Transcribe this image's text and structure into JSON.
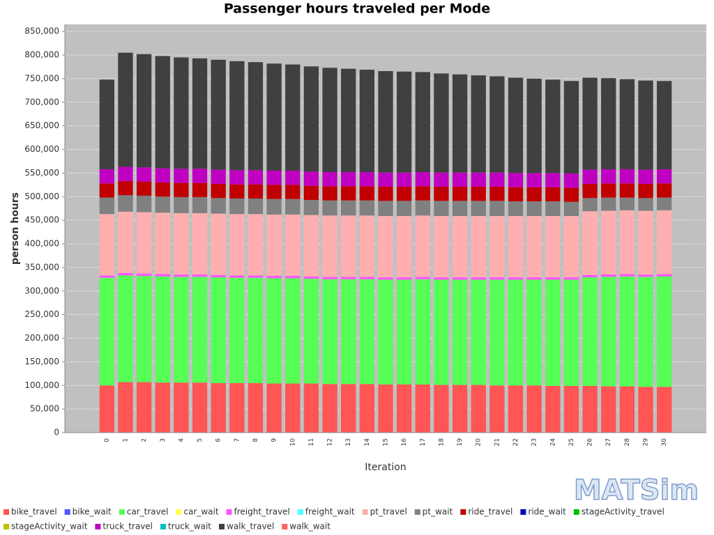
{
  "chart_data": {
    "type": "stacked-bar",
    "title": "Passenger hours traveled per Mode",
    "x_label": "Iteration",
    "y_label": "person hours",
    "logo": "MATSim",
    "categories": [
      0,
      1,
      2,
      3,
      4,
      5,
      6,
      7,
      8,
      9,
      10,
      11,
      12,
      13,
      14,
      15,
      16,
      17,
      18,
      19,
      20,
      21,
      22,
      23,
      24,
      25,
      26,
      27,
      28,
      29,
      30
    ],
    "ylim": [
      0,
      865000
    ],
    "yticks": [
      0,
      {
        "value": 50000,
        "label": "50,000"
      },
      {
        "value": 100000,
        "label": "100,000"
      },
      {
        "value": 150000,
        "label": "150,000"
      },
      {
        "value": 200000,
        "label": "200,000"
      },
      {
        "value": 250000,
        "label": "250,000"
      },
      {
        "value": 300000,
        "label": "300,000"
      },
      {
        "value": 350000,
        "label": "350,000"
      },
      {
        "value": 400000,
        "label": "400,000"
      },
      {
        "value": 450000,
        "label": "450,000"
      },
      {
        "value": 500000,
        "label": "500,000"
      },
      {
        "value": 550000,
        "label": "550,000"
      },
      {
        "value": 600000,
        "label": "600,000"
      },
      {
        "value": 650000,
        "label": "650,000"
      },
      {
        "value": 700000,
        "label": "700,000"
      },
      {
        "value": 750000,
        "label": "750,000"
      },
      {
        "value": 800000,
        "label": "800,000"
      },
      {
        "value": 850000,
        "label": "850,000"
      }
    ],
    "grid": true,
    "series": [
      {
        "name": "bike_travel",
        "color": "#ff5555",
        "values": [
          100000,
          107000,
          107000,
          106000,
          106000,
          106000,
          105000,
          105000,
          105000,
          104000,
          104000,
          104000,
          103000,
          103000,
          103000,
          102000,
          102000,
          102000,
          101000,
          101000,
          101000,
          100000,
          100000,
          100000,
          99000,
          99000,
          99000,
          98000,
          98000,
          97000,
          97000
        ]
      },
      {
        "name": "bike_wait",
        "color": "#5555ff",
        "values": [
          0,
          0,
          0,
          0,
          0,
          0,
          0,
          0,
          0,
          0,
          0,
          0,
          0,
          0,
          0,
          0,
          0,
          0,
          0,
          0,
          0,
          0,
          0,
          0,
          0,
          0,
          0,
          0,
          0,
          0,
          0
        ]
      },
      {
        "name": "car_travel",
        "color": "#55ff55",
        "values": [
          228000,
          226000,
          225000,
          225000,
          224000,
          224000,
          224000,
          223000,
          223000,
          223000,
          223000,
          222000,
          222000,
          222000,
          222000,
          222000,
          222000,
          223000,
          223000,
          223000,
          223000,
          224000,
          224000,
          224000,
          225000,
          225000,
          230000,
          232000,
          233000,
          233000,
          234000
        ]
      },
      {
        "name": "car_wait",
        "color": "#ffff55",
        "values": [
          0,
          0,
          0,
          0,
          0,
          0,
          0,
          0,
          0,
          0,
          0,
          0,
          0,
          0,
          0,
          0,
          0,
          0,
          0,
          0,
          0,
          0,
          0,
          0,
          0,
          0,
          0,
          0,
          0,
          0,
          0
        ]
      },
      {
        "name": "freight_travel",
        "color": "#ff55ff",
        "values": [
          5000,
          5000,
          5000,
          5000,
          5000,
          5000,
          5000,
          5000,
          5000,
          5000,
          5000,
          5000,
          5000,
          5000,
          5000,
          5000,
          5000,
          5000,
          5000,
          5000,
          5000,
          5000,
          5000,
          5000,
          5000,
          5000,
          5000,
          5000,
          5000,
          5000,
          5000
        ]
      },
      {
        "name": "freight_wait",
        "color": "#55ffff",
        "values": [
          0,
          0,
          0,
          0,
          0,
          0,
          0,
          0,
          0,
          0,
          0,
          0,
          0,
          0,
          0,
          0,
          0,
          0,
          0,
          0,
          0,
          0,
          0,
          0,
          0,
          0,
          0,
          0,
          0,
          0,
          0
        ]
      },
      {
        "name": "pt_travel",
        "color": "#ffafaf",
        "values": [
          130000,
          130000,
          130000,
          130000,
          130000,
          130000,
          130000,
          130000,
          130000,
          130000,
          130000,
          130000,
          130000,
          130000,
          130000,
          130000,
          130000,
          130000,
          130000,
          130000,
          130000,
          130000,
          130000,
          130000,
          130000,
          130000,
          135000,
          135000,
          135000,
          135000,
          135000
        ]
      },
      {
        "name": "pt_wait",
        "color": "#808080",
        "values": [
          35000,
          35000,
          35000,
          34000,
          34000,
          34000,
          33000,
          33000,
          33000,
          33000,
          33000,
          32000,
          32000,
          32000,
          32000,
          32000,
          32000,
          32000,
          32000,
          32000,
          32000,
          32000,
          31000,
          31000,
          31000,
          30000,
          28000,
          28000,
          27000,
          27000,
          27000
        ]
      },
      {
        "name": "ride_travel",
        "color": "#c00000",
        "values": [
          30000,
          30000,
          30000,
          30000,
          30000,
          30000,
          30000,
          30000,
          30000,
          30000,
          30000,
          30000,
          30000,
          30000,
          30000,
          30000,
          30000,
          30000,
          30000,
          30000,
          30000,
          30000,
          30000,
          30000,
          30000,
          30000,
          30000,
          30000,
          30000,
          30000,
          30000
        ]
      },
      {
        "name": "ride_wait",
        "color": "#0000c0",
        "values": [
          0,
          0,
          0,
          0,
          0,
          0,
          0,
          0,
          0,
          0,
          0,
          0,
          0,
          0,
          0,
          0,
          0,
          0,
          0,
          0,
          0,
          0,
          0,
          0,
          0,
          0,
          0,
          0,
          0,
          0,
          0
        ]
      },
      {
        "name": "stageActivity_travel",
        "color": "#00c000",
        "values": [
          0,
          0,
          0,
          0,
          0,
          0,
          0,
          0,
          0,
          0,
          0,
          0,
          0,
          0,
          0,
          0,
          0,
          0,
          0,
          0,
          0,
          0,
          0,
          0,
          0,
          0,
          0,
          0,
          0,
          0,
          0
        ]
      },
      {
        "name": "stageActivity_wait",
        "color": "#c0c000",
        "values": [
          0,
          0,
          0,
          0,
          0,
          0,
          0,
          0,
          0,
          0,
          0,
          0,
          0,
          0,
          0,
          0,
          0,
          0,
          0,
          0,
          0,
          0,
          0,
          0,
          0,
          0,
          0,
          0,
          0,
          0,
          0
        ]
      },
      {
        "name": "truck_travel",
        "color": "#c000c0",
        "values": [
          30000,
          30000,
          30000,
          30000,
          30000,
          30000,
          30000,
          30000,
          30000,
          30000,
          30000,
          30000,
          30000,
          30000,
          30000,
          30000,
          30000,
          30000,
          30000,
          30000,
          30000,
          30000,
          30000,
          30000,
          30000,
          30000,
          30000,
          30000,
          30000,
          30000,
          30000
        ]
      },
      {
        "name": "truck_wait",
        "color": "#00c0c0",
        "values": [
          0,
          0,
          0,
          0,
          0,
          0,
          0,
          0,
          0,
          0,
          0,
          0,
          0,
          0,
          0,
          0,
          0,
          0,
          0,
          0,
          0,
          0,
          0,
          0,
          0,
          0,
          0,
          0,
          0,
          0,
          0
        ]
      },
      {
        "name": "walk_travel",
        "color": "#404040",
        "values": [
          190000,
          242000,
          240000,
          238000,
          236000,
          234000,
          233000,
          231000,
          229000,
          227000,
          225000,
          223000,
          221000,
          219000,
          217000,
          215000,
          214000,
          212000,
          210000,
          208000,
          206000,
          204000,
          202000,
          200000,
          198000,
          196000,
          195000,
          193000,
          191000,
          189000,
          187000
        ]
      },
      {
        "name": "walk_wait",
        "color": "#ff6060",
        "values": [
          0,
          0,
          0,
          0,
          0,
          0,
          0,
          0,
          0,
          0,
          0,
          0,
          0,
          0,
          0,
          0,
          0,
          0,
          0,
          0,
          0,
          0,
          0,
          0,
          0,
          0,
          0,
          0,
          0,
          0,
          0
        ]
      }
    ]
  }
}
